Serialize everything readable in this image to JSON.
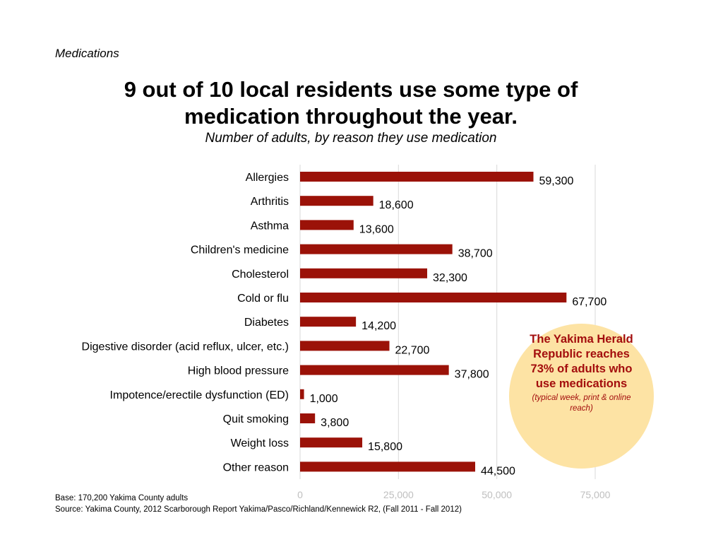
{
  "header": {
    "section_label": "Medications",
    "title_line1": "9 out of 10 local residents use some type of",
    "title_line2": "medication throughout the year.",
    "subtitle": "Number of adults, by reason they use medication"
  },
  "callout": {
    "main": "The Yakima Herald Republic reaches 73% of adults who use medications",
    "note": "(typical week, print & online reach)",
    "background_color": "#fde3a4",
    "text_color": "#a30d0d"
  },
  "footnotes": {
    "base": "Base: 170,200 Yakima County adults",
    "source": "Source: Yakima County, 2012 Scarborough Report Yakima/Pasco/Richland/Kennewick R2, (Fall 2011 - Fall 2012)"
  },
  "chart_data": {
    "type": "bar",
    "orientation": "horizontal",
    "categories": [
      "Allergies",
      "Arthritis",
      "Asthma",
      "Children's medicine",
      "Cholesterol",
      "Cold or flu",
      "Diabetes",
      "Digestive disorder (acid reflux, ulcer, etc.)",
      "High blood pressure",
      "Impotence/erectile dysfunction (ED)",
      "Quit smoking",
      "Weight loss",
      "Other reason"
    ],
    "values": [
      59300,
      18600,
      13600,
      38700,
      32300,
      67700,
      14200,
      22700,
      37800,
      1000,
      3800,
      15800,
      44500
    ],
    "value_labels": [
      "59,300",
      "18,600",
      "13,600",
      "38,700",
      "32,300",
      "67,700",
      "14,200",
      "22,700",
      "37,800",
      "1,000",
      "3,800",
      "15,800",
      "44,500"
    ],
    "xlim": [
      0,
      75000
    ],
    "xticks": [
      0,
      25000,
      50000,
      75000
    ],
    "xtick_labels": [
      "0",
      "25,000",
      "50,000",
      "75,000"
    ],
    "grid": "vertical",
    "bar_color": "#9b1208"
  }
}
